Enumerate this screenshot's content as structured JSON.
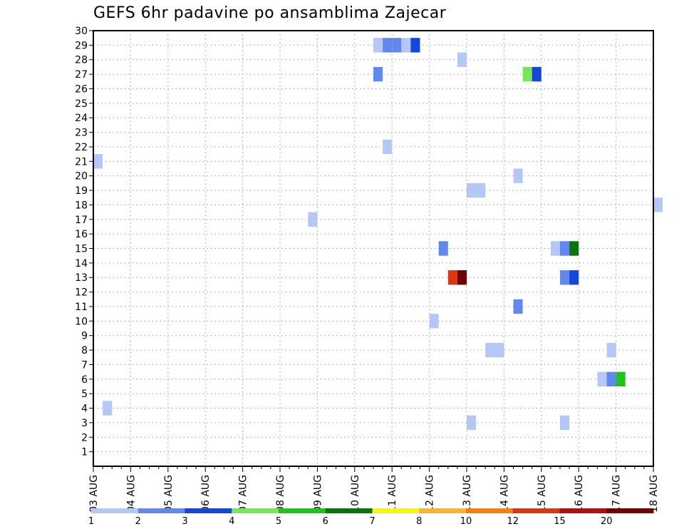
{
  "chart_data": {
    "type": "heatmap",
    "title": "GEFS 6hr padavine po ansamblima Zajecar",
    "x_tick_labels": [
      "03 AUG",
      "04 AUG",
      "05 AUG",
      "06 AUG",
      "07 AUG",
      "08 AUG",
      "09 AUG",
      "10 AUG",
      "11 AUG",
      "12 AUG",
      "13 AUG",
      "14 AUG",
      "15 AUG",
      "16 AUG",
      "17 AUG",
      "18 AUG"
    ],
    "xlim_days": [
      0,
      15
    ],
    "y_ticks": [
      1,
      2,
      3,
      4,
      5,
      6,
      7,
      8,
      9,
      10,
      11,
      12,
      13,
      14,
      15,
      16,
      17,
      18,
      19,
      20,
      21,
      22,
      23,
      24,
      25,
      26,
      27,
      28,
      29,
      30
    ],
    "ylim": [
      0,
      30
    ],
    "grid": true,
    "steps_per_day": 4,
    "colorbar": {
      "labels": [
        "1",
        "2",
        "3",
        "4",
        "5",
        "6",
        "7",
        "8",
        "10",
        "12",
        "15",
        "20"
      ],
      "colors": [
        "#b4c7f5",
        "#6188ea",
        "#1446dc",
        "#78e65a",
        "#1ec31e",
        "#077507",
        "#f9f903",
        "#f9b532",
        "#f97e0d",
        "#e03513",
        "#b40d0d",
        "#6e0202"
      ]
    },
    "cells": [
      {
        "member": 29,
        "x": 7.5,
        "level": 1
      },
      {
        "member": 29,
        "x": 7.75,
        "level": 2
      },
      {
        "member": 29,
        "x": 8.0,
        "level": 2
      },
      {
        "member": 29,
        "x": 8.25,
        "level": 1
      },
      {
        "member": 29,
        "x": 8.5,
        "level": 3
      },
      {
        "member": 28,
        "x": 9.75,
        "level": 1
      },
      {
        "member": 27,
        "x": 7.5,
        "level": 2
      },
      {
        "member": 27,
        "x": 11.5,
        "level": 4
      },
      {
        "member": 27,
        "x": 11.75,
        "level": 3
      },
      {
        "member": 22,
        "x": 7.75,
        "level": 1
      },
      {
        "member": 21,
        "x": 0.0,
        "level": 1
      },
      {
        "member": 20,
        "x": 11.25,
        "level": 1
      },
      {
        "member": 19,
        "x": 10.0,
        "level": 1
      },
      {
        "member": 19,
        "x": 10.25,
        "level": 1
      },
      {
        "member": 18,
        "x": 15.0,
        "level": 1
      },
      {
        "member": 17,
        "x": 5.75,
        "level": 1
      },
      {
        "member": 15,
        "x": 9.25,
        "level": 2
      },
      {
        "member": 15,
        "x": 12.25,
        "level": 1
      },
      {
        "member": 15,
        "x": 12.5,
        "level": 2
      },
      {
        "member": 15,
        "x": 12.75,
        "level": 6
      },
      {
        "member": 13,
        "x": 9.5,
        "level": 10
      },
      {
        "member": 13,
        "x": 9.75,
        "level": 12
      },
      {
        "member": 13,
        "x": 12.5,
        "level": 2
      },
      {
        "member": 13,
        "x": 12.75,
        "level": 3
      },
      {
        "member": 11,
        "x": 11.25,
        "level": 2
      },
      {
        "member": 10,
        "x": 9.0,
        "level": 1
      },
      {
        "member": 8,
        "x": 10.5,
        "level": 1
      },
      {
        "member": 8,
        "x": 10.75,
        "level": 1
      },
      {
        "member": 8,
        "x": 13.75,
        "level": 1
      },
      {
        "member": 6,
        "x": 13.5,
        "level": 1
      },
      {
        "member": 6,
        "x": 13.75,
        "level": 2
      },
      {
        "member": 6,
        "x": 14.0,
        "level": 5
      },
      {
        "member": 4,
        "x": 0.25,
        "level": 1
      },
      {
        "member": 3,
        "x": 10.0,
        "level": 1
      },
      {
        "member": 3,
        "x": 12.5,
        "level": 1
      }
    ]
  }
}
